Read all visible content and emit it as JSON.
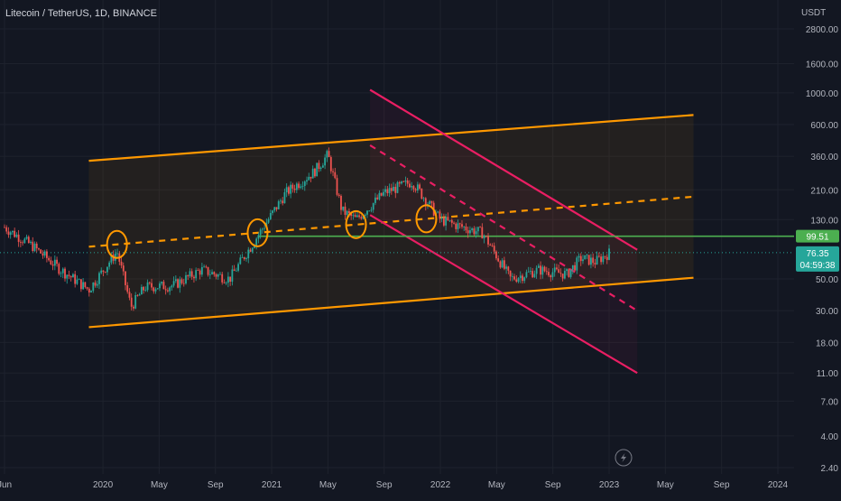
{
  "chart_data": {
    "type": "candlestick",
    "title": "Litecoin / TetherUS, 1D, BINANCE",
    "y_unit": "USDT",
    "y_scale": "log",
    "y_ticks": [
      "2800.00",
      "1600.00",
      "1000.00",
      "600.00",
      "360.00",
      "210.00",
      "130.00",
      "50.00",
      "30.00",
      "18.00",
      "11.00",
      "7.00",
      "4.00",
      "2.40"
    ],
    "x_ticks": [
      "Jun",
      "2020",
      "May",
      "Sep",
      "2021",
      "May",
      "Sep",
      "2022",
      "May",
      "Sep",
      "2023",
      "May",
      "Sep",
      "2024"
    ],
    "x_tick_dates": [
      "2019-06",
      "2020-01",
      "2020-05",
      "2020-09",
      "2021-01",
      "2021-05",
      "2021-09",
      "2022-01",
      "2022-05",
      "2022-09",
      "2023-01",
      "2023-05",
      "2023-09",
      "2024-01"
    ],
    "price_path": [
      [
        "2019-06",
        115
      ],
      [
        "2019-08",
        85
      ],
      [
        "2019-10",
        58
      ],
      [
        "2019-12",
        42
      ],
      [
        "2020-02",
        78
      ],
      [
        "2020-03",
        32
      ],
      [
        "2020-04",
        44
      ],
      [
        "2020-06",
        45
      ],
      [
        "2020-08",
        58
      ],
      [
        "2020-10",
        50
      ],
      [
        "2020-12",
        100
      ],
      [
        "2021-02",
        200
      ],
      [
        "2021-04",
        280
      ],
      [
        "2021-05",
        370
      ],
      [
        "2021-06",
        150
      ],
      [
        "2021-07",
        130
      ],
      [
        "2021-09",
        200
      ],
      [
        "2021-11",
        240
      ],
      [
        "2022-01",
        130
      ],
      [
        "2022-02",
        120
      ],
      [
        "2022-04",
        105
      ],
      [
        "2022-06",
        50
      ],
      [
        "2022-08",
        58
      ],
      [
        "2022-10",
        54
      ],
      [
        "2022-11",
        70
      ],
      [
        "2022-12",
        66
      ],
      [
        "2023-01",
        76
      ]
    ],
    "price_markers": [
      {
        "label": "99.51",
        "value": 99.51,
        "color": "#4caf50"
      },
      {
        "label": "76.35",
        "value": 76.35,
        "color": "#26a69a",
        "countdown": "04:59:38"
      }
    ],
    "drawings": [
      {
        "kind": "channel-upper",
        "color": "#ff9800",
        "from": [
          "2019-12",
          335
        ],
        "to": [
          "2023-07",
          700
        ]
      },
      {
        "kind": "channel-lower",
        "color": "#ff9800",
        "from": [
          "2019-12",
          23
        ],
        "to": [
          "2023-07",
          51
        ]
      },
      {
        "kind": "channel-mid",
        "color": "#ff9800",
        "dashed": true,
        "from": [
          "2019-12",
          84
        ],
        "to": [
          "2023-07",
          188
        ]
      },
      {
        "kind": "down-upper",
        "color": "#e91e63",
        "from": [
          "2021-08",
          1050
        ],
        "to": [
          "2023-03",
          80
        ]
      },
      {
        "kind": "down-lower",
        "color": "#e91e63",
        "from": [
          "2021-08",
          140
        ],
        "to": [
          "2023-03",
          11
        ]
      },
      {
        "kind": "down-mid",
        "color": "#e91e63",
        "dashed": true,
        "from": [
          "2021-08",
          430
        ],
        "to": [
          "2023-03",
          30
        ]
      },
      {
        "kind": "support",
        "color": "#4caf50",
        "value": 99.51
      }
    ],
    "touch_circles": [
      "2020-02",
      "2020-12",
      "2021-07",
      "2021-12"
    ],
    "grid": true
  }
}
